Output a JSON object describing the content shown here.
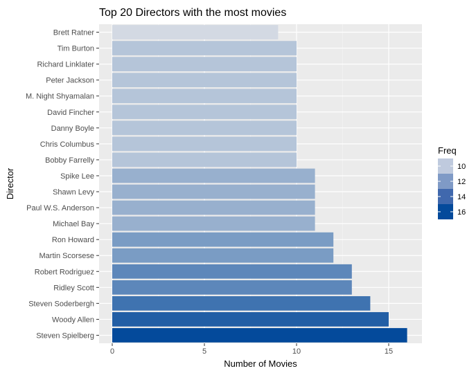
{
  "chart_data": {
    "type": "bar",
    "orientation": "horizontal",
    "title": "Top 20 Directors with the most movies",
    "xlabel": "Number of Movies",
    "ylabel": "Director",
    "xlim": [
      0,
      16.8
    ],
    "x_ticks": [
      0,
      5,
      10,
      15
    ],
    "grid": true,
    "categories": [
      "Brett Ratner",
      "Tim Burton",
      "Richard Linklater",
      "Peter Jackson",
      "M. Night Shyamalan",
      "David Fincher",
      "Danny Boyle",
      "Chris Columbus",
      "Bobby Farrelly",
      "Spike Lee",
      "Shawn Levy",
      "Paul W.S. Anderson",
      "Michael Bay",
      "Ron Howard",
      "Martin Scorsese",
      "Robert Rodriguez",
      "Ridley Scott",
      "Steven Soderbergh",
      "Woody Allen",
      "Steven Spielberg"
    ],
    "values": [
      9,
      10,
      10,
      10,
      10,
      10,
      10,
      10,
      10,
      11,
      11,
      11,
      11,
      12,
      12,
      13,
      13,
      14,
      15,
      16
    ],
    "legend": {
      "title": "Freq",
      "position": "right",
      "entries": [
        {
          "label": "10",
          "value": 10,
          "color": "#bfcade"
        },
        {
          "label": "12",
          "value": 12,
          "color": "#7f9ac6"
        },
        {
          "label": "14",
          "value": 14,
          "color": "#4068ad"
        },
        {
          "label": "16",
          "value": 16,
          "color": "#044a9b"
        }
      ]
    },
    "color_scale": {
      "low": 9,
      "high": 16,
      "low_color": "#d3d9e3",
      "high_color": "#044a9b"
    }
  }
}
